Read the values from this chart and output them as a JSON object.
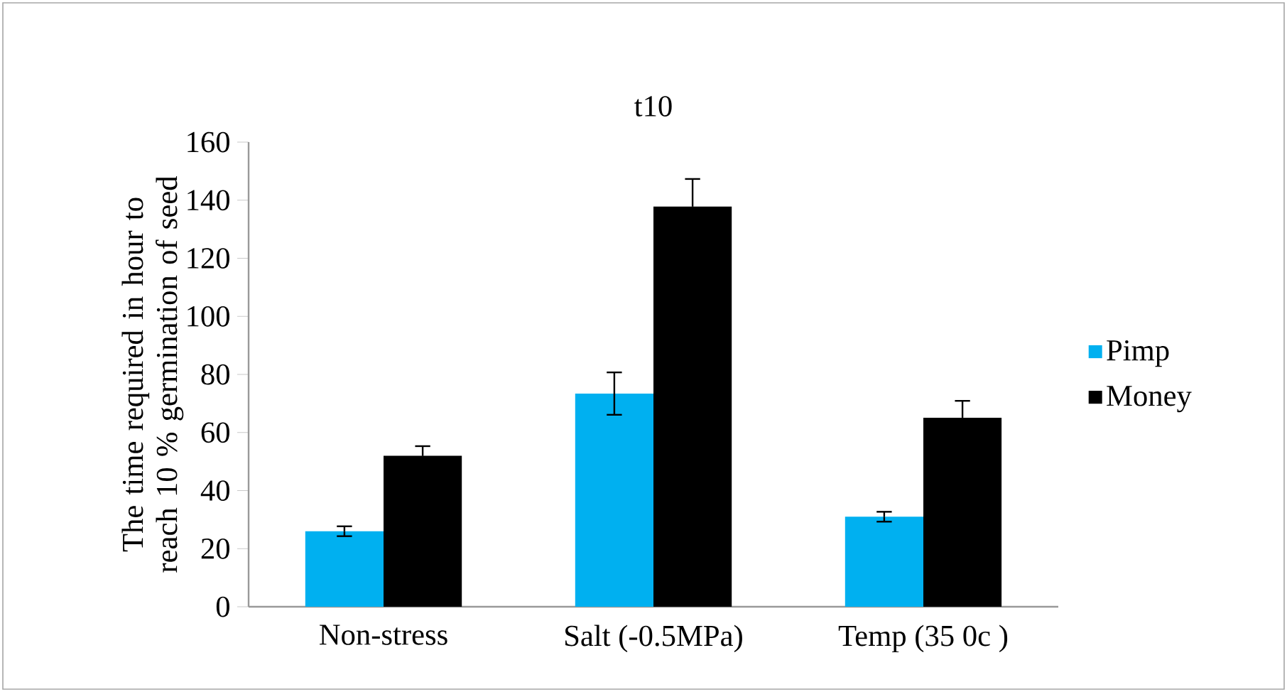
{
  "chart_data": {
    "type": "bar",
    "title": "t10",
    "ylabel": "The time required in hour to reach 10 % germination of seed",
    "categories": [
      "Non-stress",
      "Salt (-0.5MPa)",
      "Temp (35 0c )"
    ],
    "series": [
      {
        "name": "Pimp",
        "color": "#00b0f0",
        "values": [
          26,
          73.4,
          31
        ],
        "errors": [
          1.7,
          7.3,
          1.7
        ]
      },
      {
        "name": "Money",
        "color": "#000000",
        "values": [
          52,
          137.8,
          65.1
        ],
        "errors": [
          3.3,
          9.5,
          5.8
        ]
      }
    ],
    "ylim": [
      0,
      160
    ],
    "yticks": [
      0,
      20,
      40,
      60,
      80,
      100,
      120,
      140,
      160
    ],
    "grid": false,
    "legend": "right"
  }
}
